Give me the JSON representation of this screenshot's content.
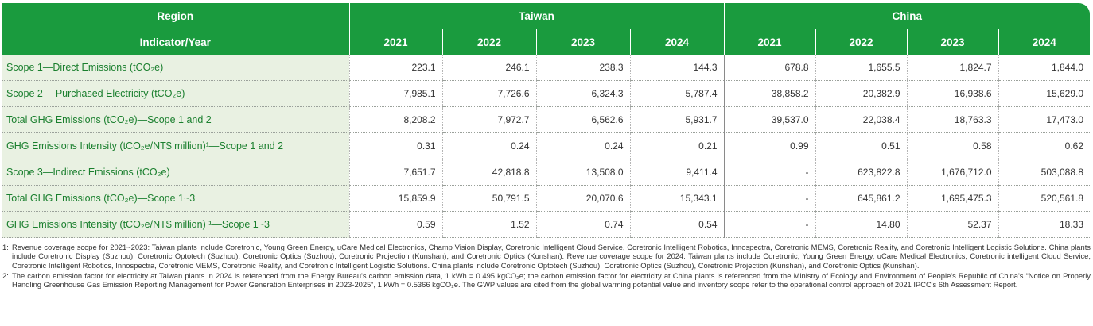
{
  "header": {
    "region_label": "Region",
    "indicator_label": "Indicator/Year",
    "regions": [
      "Taiwan",
      "China"
    ],
    "years": [
      "2021",
      "2022",
      "2023",
      "2024",
      "2021",
      "2022",
      "2023",
      "2024"
    ]
  },
  "rows": [
    {
      "label": "Scope 1—Direct Emissions (tCO₂e)",
      "values": [
        "223.1",
        "246.1",
        "238.3",
        "144.3",
        "678.8",
        "1,655.5",
        "1,824.7",
        "1,844.0"
      ]
    },
    {
      "label": "Scope 2— Purchased Electricity (tCO₂e)",
      "values": [
        "7,985.1",
        "7,726.6",
        "6,324.3",
        "5,787.4",
        "38,858.2",
        "20,382.9",
        "16,938.6",
        "15,629.0"
      ]
    },
    {
      "label": "Total GHG Emissions (tCO₂e)—Scope 1 and 2",
      "values": [
        "8,208.2",
        "7,972.7",
        "6,562.6",
        "5,931.7",
        "39,537.0",
        "22,038.4",
        "18,763.3",
        "17,473.0"
      ]
    },
    {
      "label": "GHG Emissions Intensity (tCO₂e/NT$ million)¹—Scope 1 and 2",
      "values": [
        "0.31",
        "0.24",
        "0.24",
        "0.21",
        "0.99",
        "0.51",
        "0.58",
        "0.62"
      ]
    },
    {
      "label": "Scope 3—Indirect Emissions (tCO₂e)",
      "values": [
        "7,651.7",
        "42,818.8",
        "13,508.0",
        "9,411.4",
        "-",
        "623,822.8",
        "1,676,712.0",
        "503,088.8"
      ]
    },
    {
      "label": "Total GHG Emissions (tCO₂e)—Scope 1~3",
      "values": [
        "15,859.9",
        "50,791.5",
        "20,070.6",
        "15,343.1",
        "-",
        "645,861.2",
        "1,695,475.3",
        "520,561.8"
      ]
    },
    {
      "label": "GHG Emissions Intensity (tCO₂e/NT$ million) ¹—Scope 1~3",
      "values": [
        "0.59",
        "1.52",
        "0.74",
        "0.54",
        "-",
        "14.80",
        "52.37",
        "18.33"
      ]
    }
  ],
  "footnotes": [
    {
      "marker": "1:",
      "text": "Revenue coverage scope for 2021~2023: Taiwan plants include Coretronic, Young Green Energy, uCare Medical Electronics, Champ Vision Display, Coretronic Intelligent Cloud Service, Coretronic Intelligent Robotics, Innospectra, Coretronic MEMS, Coretronic Reality, and Coretronic Intelligent Logistic Solutions. China plants include Coretronic Display (Suzhou), Coretronic Optotech (Suzhou), Coretronic Optics (Suzhou), Coretronic Projection (Kunshan), and Coretronic Optics (Kunshan). Revenue coverage scope for 2024: Taiwan plants include Coretronic, Young Green Energy, uCare Medical Electronics, Coretronic intelligent Cloud Service, Coretronic Intelligent Robotics, Innospectra, Coretronic MEMS, Coretronic Reality, and Coretronic Intelligent Logistic Solutions. China plants include Coretronic Optotech (Suzhou), Coretronic Optics (Suzhou), Coretronic Projection (Kunshan), and Coretronic Optics (Kunshan)."
    },
    {
      "marker": "2:",
      "text": "The carbon emission factor for electricity at Taiwan plants in 2024 is referenced from the Energy Bureau's carbon emission data, 1 kWh = 0.495 kgCO₂e; the carbon emission factor for electricity at China plants is referenced from the Ministry of Ecology and Environment of People's Republic of China's “Notice on Properly Handling Greenhouse Gas Emission Reporting Management for Power Generation Enterprises in 2023-2025”, 1 kWh = 0.5366 kgCO₂e. The GWP values are cited from the global warming potential value and inventory scope refer to the operational control approach of 2021 IPCC's 6th Assessment Report."
    }
  ],
  "colors": {
    "header_green": "#1a9b3e",
    "label_bg": "#e9f1e2",
    "label_text": "#1a7f2e"
  }
}
